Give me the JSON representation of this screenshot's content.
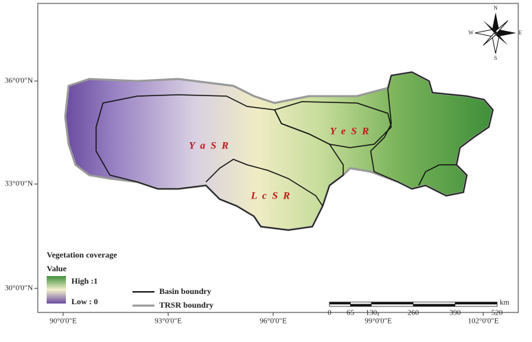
{
  "map": {
    "axes": {
      "y_labels": [
        "36°0'0\"N",
        "33°0'0\"N",
        "30°0'0\"N"
      ],
      "x_labels": [
        "90°0'0\"E",
        "93°0'0\"E",
        "96°0'0\"E",
        "99°0'0\"E",
        "102°0'0\"E"
      ]
    },
    "regions": [
      "Y a S R",
      "Y e S R",
      "L c S R"
    ],
    "compass": {
      "n": "N",
      "s": "S",
      "e": "E",
      "w": "W"
    },
    "legend": {
      "title": "Vegetation coverage",
      "value_label": "Value",
      "high": "High :1",
      "low": "Low : 0",
      "basin": "Basin boundry",
      "trsr": "TRSR boundry"
    },
    "scale_bar": {
      "ticks": [
        0,
        65,
        130,
        260,
        390,
        520
      ],
      "unit": "km"
    }
  }
}
